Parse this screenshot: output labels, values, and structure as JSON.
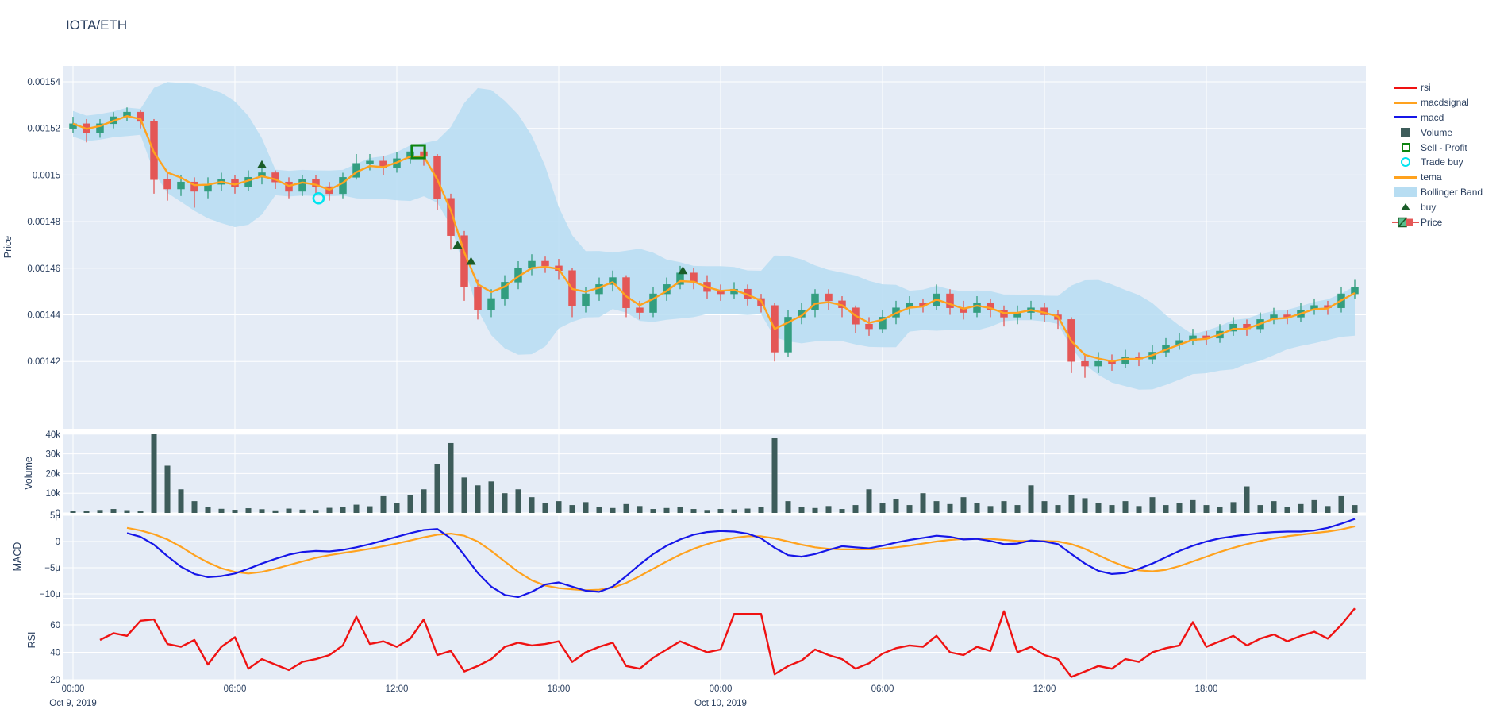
{
  "title": "IOTA/ETH",
  "colors": {
    "paper": "#ffffff",
    "plot_bg": "#e5ecf6",
    "grid": "#ffffff",
    "text": "#2a3f5f",
    "candle_up": "#339e80",
    "candle_down": "#e45756",
    "volume_bar": "#3d5c5a",
    "tema": "#ffa21e",
    "macd": "#1616e8",
    "macdsignal": "#ffa21e",
    "rsi": "#ef1212",
    "bollinger": "#b7ddf2",
    "buy_marker": "#1a5c28",
    "sell_marker": "#0d8410",
    "trade_buy_marker": "#00e4f0"
  },
  "legend": {
    "items": [
      {
        "label": "rsi",
        "type": "line",
        "color": "#ef1212"
      },
      {
        "label": "macdsignal",
        "type": "line",
        "color": "#ffa21e"
      },
      {
        "label": "macd",
        "type": "line",
        "color": "#1616e8"
      },
      {
        "label": "Volume",
        "type": "fsquare",
        "color": "#3d5c5a"
      },
      {
        "label": "Sell - Profit",
        "type": "osquare",
        "color": "#0d8410"
      },
      {
        "label": "Trade buy",
        "type": "ocircle",
        "color": "#00e4f0"
      },
      {
        "label": "tema",
        "type": "line",
        "color": "#ffa21e"
      },
      {
        "label": "Bollinger Band",
        "type": "band",
        "color": "#b7ddf2"
      },
      {
        "label": "buy",
        "type": "triangle",
        "color": "#1a5c28"
      },
      {
        "label": "Price",
        "type": "candle",
        "color": "#339e80"
      }
    ]
  },
  "axes": {
    "price": {
      "title": "Price",
      "tick_labels": [
        "0.00154",
        "0.00152",
        "0.0015",
        "0.00148",
        "0.00146",
        "0.00144",
        "0.00142"
      ],
      "tick_values": [
        154,
        152,
        150,
        148,
        146,
        144,
        142
      ],
      "scale_note": "values are price x 1e5"
    },
    "volume": {
      "title": "Volume",
      "tick_labels": [
        "40k",
        "30k",
        "20k",
        "10k",
        "0"
      ],
      "tick_values": [
        40,
        30,
        20,
        10,
        0
      ],
      "scale_note": "thousands"
    },
    "macd": {
      "title": "MACD",
      "tick_labels": [
        "5μ",
        "0",
        "−5μ",
        "−10μ"
      ],
      "tick_values": [
        5,
        0,
        -5,
        -10
      ],
      "scale_note": "micro units"
    },
    "rsi": {
      "title": "RSI",
      "tick_labels": [
        "60",
        "40",
        "20"
      ],
      "tick_values": [
        60,
        40,
        20
      ]
    },
    "x": {
      "tick_labels": [
        "00:00",
        "06:00",
        "12:00",
        "18:00",
        "00:00",
        "06:00",
        "12:00",
        "18:00"
      ],
      "tick_hours": [
        0,
        6,
        12,
        18,
        24,
        30,
        36,
        42
      ],
      "date_labels": [
        {
          "hour": 0,
          "text": "Oct 9, 2019"
        },
        {
          "hour": 24,
          "text": "Oct 10, 2019"
        }
      ]
    }
  },
  "chart_data": {
    "type": "candlestick",
    "title": "IOTA/ETH",
    "time_range": {
      "start": "2019-10-09 00:00",
      "end": "2019-10-10 23:55",
      "candle_interval_hours": 0.5
    },
    "price_ylim": [
      141.0,
      154.7
    ],
    "volume_ylim": [
      0,
      40.5
    ],
    "macd_ylim": [
      -10.6,
      5.0
    ],
    "rsi_ylim": [
      19,
      79
    ],
    "candles_ohlcv_note": "[hours since Oct 9 00:00, open, high, low, close, volume_k]; prices x 1e-5",
    "candles_ohlcv": [
      [
        0,
        152.0,
        152.5,
        151.8,
        152.2,
        1.2
      ],
      [
        0.5,
        152.2,
        152.4,
        151.4,
        151.8,
        0.9
      ],
      [
        1,
        151.8,
        152.4,
        151.6,
        152.2,
        1.5
      ],
      [
        1.5,
        152.2,
        152.7,
        152.0,
        152.5,
        2.0
      ],
      [
        2,
        152.5,
        152.9,
        152.3,
        152.7,
        1.4
      ],
      [
        2.5,
        152.7,
        152.8,
        152.0,
        152.3,
        1.0
      ],
      [
        3,
        152.3,
        152.4,
        149.2,
        149.8,
        40.5
      ],
      [
        3.5,
        149.8,
        150.1,
        148.9,
        149.4,
        24.0
      ],
      [
        4,
        149.4,
        150.0,
        149.1,
        149.7,
        12.0
      ],
      [
        4.5,
        149.7,
        149.9,
        148.6,
        149.3,
        6.0
      ],
      [
        5,
        149.3,
        149.9,
        149.0,
        149.6,
        3.2
      ],
      [
        5.5,
        149.6,
        150.1,
        149.3,
        149.8,
        2.1
      ],
      [
        6,
        149.8,
        150.0,
        149.2,
        149.5,
        1.6
      ],
      [
        6.5,
        149.5,
        150.2,
        149.3,
        149.9,
        2.4
      ],
      [
        7,
        149.9,
        150.3,
        149.6,
        150.1,
        1.9
      ],
      [
        7.5,
        150.1,
        150.2,
        149.4,
        149.7,
        1.3
      ],
      [
        8,
        149.7,
        149.9,
        149.0,
        149.3,
        2.2
      ],
      [
        8.5,
        149.3,
        150.0,
        149.1,
        149.8,
        1.7
      ],
      [
        9,
        149.8,
        150.0,
        149.2,
        149.5,
        1.5
      ],
      [
        9.5,
        149.5,
        149.7,
        148.9,
        149.2,
        2.6
      ],
      [
        10,
        149.2,
        150.1,
        149.0,
        149.9,
        3.0
      ],
      [
        10.5,
        149.9,
        150.9,
        149.8,
        150.5,
        4.2
      ],
      [
        11,
        150.5,
        150.9,
        150.2,
        150.6,
        3.4
      ],
      [
        11.5,
        150.6,
        150.8,
        150.0,
        150.3,
        8.5
      ],
      [
        12,
        150.3,
        151.0,
        150.1,
        150.7,
        5.0
      ],
      [
        12.5,
        150.7,
        151.3,
        150.5,
        151.0,
        9.0
      ],
      [
        13,
        151.0,
        151.2,
        150.4,
        150.8,
        12.0
      ],
      [
        13.5,
        150.8,
        150.9,
        148.5,
        149.0,
        25.0
      ],
      [
        14,
        149.0,
        149.2,
        146.8,
        147.4,
        35.5
      ],
      [
        14.5,
        147.4,
        147.6,
        144.6,
        145.2,
        18.0
      ],
      [
        15,
        145.2,
        145.5,
        143.8,
        144.2,
        14.0
      ],
      [
        15.5,
        144.2,
        145.1,
        143.9,
        144.7,
        16.0
      ],
      [
        16,
        144.7,
        145.7,
        144.4,
        145.4,
        10.0
      ],
      [
        16.5,
        145.4,
        146.3,
        145.1,
        146.0,
        12.0
      ],
      [
        17,
        146.0,
        146.6,
        145.7,
        146.3,
        8.0
      ],
      [
        17.5,
        146.3,
        146.5,
        145.8,
        146.1,
        5.0
      ],
      [
        18,
        146.1,
        146.4,
        145.5,
        145.9,
        6.0
      ],
      [
        18.5,
        145.9,
        146.0,
        143.9,
        144.4,
        4.0
      ],
      [
        19,
        144.4,
        145.2,
        144.1,
        144.9,
        5.5
      ],
      [
        19.5,
        144.9,
        145.6,
        144.6,
        145.3,
        3.0
      ],
      [
        20,
        145.3,
        145.9,
        145.0,
        145.6,
        2.5
      ],
      [
        20.5,
        145.6,
        145.7,
        143.9,
        144.3,
        4.5
      ],
      [
        21,
        144.3,
        144.6,
        143.8,
        144.1,
        3.5
      ],
      [
        21.5,
        144.1,
        145.2,
        143.9,
        144.9,
        2.0
      ],
      [
        22,
        144.9,
        145.6,
        144.6,
        145.3,
        2.5
      ],
      [
        22.5,
        145.3,
        146.1,
        145.1,
        145.8,
        3.0
      ],
      [
        23,
        145.8,
        146.0,
        145.1,
        145.4,
        2.0
      ],
      [
        23.5,
        145.4,
        145.7,
        144.7,
        145.0,
        1.5
      ],
      [
        24,
        145.0,
        145.3,
        144.6,
        144.9,
        2.0
      ],
      [
        24.5,
        144.9,
        145.4,
        144.7,
        145.1,
        1.8
      ],
      [
        25,
        145.1,
        145.3,
        144.4,
        144.7,
        2.2
      ],
      [
        25.5,
        144.7,
        144.9,
        144.1,
        144.4,
        3.0
      ],
      [
        26,
        144.4,
        144.5,
        142.0,
        142.4,
        38.0
      ],
      [
        26.5,
        142.4,
        144.2,
        142.2,
        143.9,
        6.0
      ],
      [
        27,
        143.9,
        144.5,
        143.6,
        144.2,
        3.0
      ],
      [
        27.5,
        144.2,
        145.1,
        143.9,
        144.9,
        2.5
      ],
      [
        28,
        144.9,
        145.1,
        144.2,
        144.6,
        3.5
      ],
      [
        28.5,
        144.6,
        144.8,
        143.9,
        144.3,
        2.0
      ],
      [
        29,
        144.3,
        144.4,
        143.2,
        143.6,
        4.0
      ],
      [
        29.5,
        143.6,
        143.9,
        143.1,
        143.4,
        12.0
      ],
      [
        30,
        143.4,
        144.2,
        143.2,
        143.9,
        5.0
      ],
      [
        30.5,
        143.9,
        144.6,
        143.6,
        144.3,
        7.0
      ],
      [
        31,
        144.3,
        144.8,
        144.0,
        144.5,
        4.0
      ],
      [
        31.5,
        144.5,
        144.7,
        144.1,
        144.4,
        10.0
      ],
      [
        32,
        144.4,
        145.3,
        144.2,
        144.9,
        6.0
      ],
      [
        32.5,
        144.9,
        145.1,
        144.0,
        144.3,
        4.5
      ],
      [
        33,
        144.3,
        144.6,
        143.8,
        144.1,
        8.0
      ],
      [
        33.5,
        144.1,
        144.8,
        143.9,
        144.5,
        5.0
      ],
      [
        34,
        144.5,
        144.7,
        143.9,
        144.2,
        3.5
      ],
      [
        34.5,
        144.2,
        144.4,
        143.5,
        143.9,
        6.0
      ],
      [
        35,
        143.9,
        144.4,
        143.6,
        144.1,
        4.0
      ],
      [
        35.5,
        144.1,
        144.6,
        143.8,
        144.3,
        14.0
      ],
      [
        36,
        144.3,
        144.5,
        143.7,
        144.0,
        6.0
      ],
      [
        36.5,
        144.0,
        144.2,
        143.4,
        143.8,
        4.0
      ],
      [
        37,
        143.8,
        143.9,
        141.5,
        142.0,
        9.0
      ],
      [
        37.5,
        142.0,
        142.3,
        141.3,
        141.8,
        7.5
      ],
      [
        38,
        141.8,
        142.4,
        141.5,
        142.0,
        5.0
      ],
      [
        38.5,
        142.0,
        142.3,
        141.6,
        141.9,
        4.0
      ],
      [
        39,
        141.9,
        142.5,
        141.7,
        142.2,
        6.0
      ],
      [
        39.5,
        142.2,
        142.4,
        141.8,
        142.1,
        3.5
      ],
      [
        40,
        142.1,
        142.7,
        141.9,
        142.4,
        8.0
      ],
      [
        40.5,
        142.4,
        143.0,
        142.2,
        142.7,
        4.0
      ],
      [
        41,
        142.7,
        143.2,
        142.5,
        142.9,
        5.0
      ],
      [
        41.5,
        142.9,
        143.4,
        142.7,
        143.1,
        6.5
      ],
      [
        42,
        143.1,
        143.3,
        142.7,
        143.0,
        4.0
      ],
      [
        42.5,
        143.0,
        143.6,
        142.8,
        143.3,
        3.0
      ],
      [
        43,
        143.3,
        143.9,
        143.1,
        143.6,
        5.5
      ],
      [
        43.5,
        143.6,
        143.8,
        143.1,
        143.4,
        13.5
      ],
      [
        44,
        143.4,
        144.1,
        143.2,
        143.8,
        4.0
      ],
      [
        44.5,
        143.8,
        144.3,
        143.6,
        144.0,
        6.0
      ],
      [
        45,
        144.0,
        144.2,
        143.6,
        143.9,
        3.0
      ],
      [
        45.5,
        143.9,
        144.5,
        143.7,
        144.2,
        4.5
      ],
      [
        46,
        144.2,
        144.7,
        144.0,
        144.4,
        6.5
      ],
      [
        46.5,
        144.4,
        144.6,
        144.0,
        144.3,
        3.5
      ],
      [
        47,
        144.3,
        145.2,
        144.1,
        144.9,
        8.5
      ],
      [
        47.5,
        144.9,
        145.5,
        144.7,
        145.2,
        4.0
      ]
    ],
    "bollinger": {
      "window": 10,
      "stddev_mult": 2
    },
    "tema": {
      "derived": "EMA of close, alpha 0.55"
    },
    "macd_series": {
      "t0": 2.0,
      "dt": 0.5,
      "signal": [
        2.6,
        2.1,
        1.4,
        0.4,
        -1.0,
        -2.6,
        -4.0,
        -5.1,
        -5.8,
        -6.1,
        -5.8,
        -5.2,
        -4.5,
        -3.8,
        -3.1,
        -2.6,
        -2.2,
        -1.8,
        -1.4,
        -0.9,
        -0.4,
        0.2,
        0.8,
        1.3,
        1.5,
        1.1,
        0.0,
        -1.8,
        -3.8,
        -5.8,
        -7.4,
        -8.4,
        -8.9,
        -9.1,
        -9.3,
        -9.2,
        -8.8,
        -7.9,
        -6.6,
        -5.2,
        -3.8,
        -2.5,
        -1.4,
        -0.5,
        0.2,
        0.7,
        1.0,
        1.0,
        0.6,
        0.0,
        -0.6,
        -1.1,
        -1.4,
        -1.5,
        -1.5,
        -1.5,
        -1.4,
        -1.1,
        -0.8,
        -0.4,
        0.0,
        0.3,
        0.5,
        0.5,
        0.5,
        0.3,
        0.1,
        0.1,
        0.1,
        0.0,
        -0.5,
        -1.4,
        -2.6,
        -3.8,
        -4.8,
        -5.5,
        -5.7,
        -5.4,
        -4.7,
        -3.8,
        -2.9,
        -2.0,
        -1.2,
        -0.5,
        0.1,
        0.6,
        1.0,
        1.3,
        1.6,
        1.9,
        2.3,
        2.9
      ],
      "macd": [
        1.6,
        0.9,
        -0.6,
        -2.8,
        -4.8,
        -6.2,
        -6.8,
        -6.6,
        -6.1,
        -5.2,
        -4.2,
        -3.3,
        -2.5,
        -2.0,
        -1.8,
        -1.9,
        -1.6,
        -1.1,
        -0.5,
        0.2,
        0.9,
        1.6,
        2.2,
        2.4,
        0.6,
        -2.6,
        -6.0,
        -8.6,
        -10.2,
        -10.6,
        -9.6,
        -8.2,
        -7.8,
        -8.6,
        -9.4,
        -9.6,
        -8.6,
        -6.6,
        -4.4,
        -2.4,
        -0.8,
        0.4,
        1.3,
        1.8,
        2.0,
        1.9,
        1.5,
        0.6,
        -1.2,
        -2.6,
        -2.9,
        -2.4,
        -1.6,
        -0.9,
        -1.1,
        -1.3,
        -0.8,
        -0.2,
        0.3,
        0.7,
        1.1,
        0.9,
        0.4,
        0.5,
        0.1,
        -0.5,
        -0.4,
        0.2,
        0.0,
        -0.5,
        -2.4,
        -4.2,
        -5.6,
        -6.2,
        -6.0,
        -5.2,
        -4.2,
        -3.0,
        -1.8,
        -0.8,
        0.0,
        0.6,
        1.0,
        1.3,
        1.6,
        1.8,
        1.9,
        1.9,
        2.1,
        2.6,
        3.4,
        4.3
      ]
    },
    "rsi_series": {
      "t0": 1.0,
      "dt": 0.5,
      "values": [
        49,
        54,
        52,
        63,
        64,
        46,
        44,
        49,
        31,
        44,
        51,
        28,
        35,
        31,
        27,
        33,
        35,
        38,
        45,
        66,
        46,
        48,
        44,
        50,
        64,
        38,
        41,
        26,
        30,
        35,
        44,
        47,
        45,
        46,
        48,
        33,
        40,
        44,
        47,
        30,
        28,
        36,
        42,
        48,
        44,
        40,
        42,
        68,
        68,
        68,
        24,
        30,
        34,
        42,
        38,
        35,
        28,
        32,
        39,
        43,
        45,
        44,
        52,
        40,
        38,
        44,
        41,
        70,
        40,
        44,
        38,
        35,
        22,
        26,
        30,
        28,
        35,
        33,
        40,
        43,
        45,
        62,
        44,
        48,
        52,
        45,
        50,
        53,
        48,
        52,
        55,
        50,
        60,
        72
      ]
    },
    "markers": {
      "buy": [
        [
          7.0,
          150.45
        ],
        [
          14.25,
          147.0
        ],
        [
          14.75,
          146.3
        ],
        [
          22.6,
          145.9
        ]
      ],
      "sell_profit": [
        [
          12.8,
          151.0
        ]
      ],
      "trade_buy": [
        [
          9.1,
          149.0
        ]
      ]
    }
  }
}
